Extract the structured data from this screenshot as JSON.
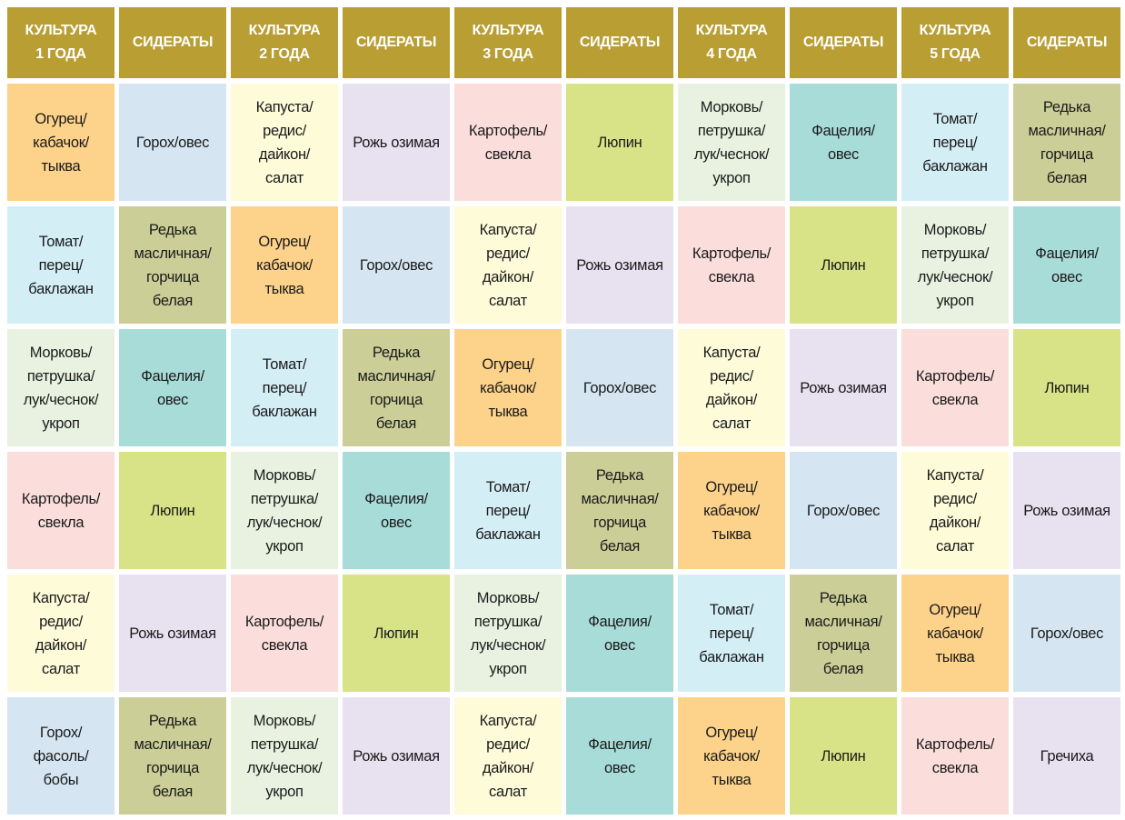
{
  "header": [
    "КУЛЬТУРА\n1 ГОДА",
    "СИДЕРАТЫ",
    "КУЛЬТУРА\n2 ГОДА",
    "СИДЕРАТЫ",
    "КУЛЬТУРА\n3 ГОДА",
    "СИДЕРАТЫ",
    "КУЛЬТУРА\n4 ГОДА",
    "СИДЕРАТЫ",
    "КУЛЬТУРА\n5 ГОДА",
    "СИДЕРАТЫ"
  ],
  "header_color": "#B99E34",
  "crops": {
    "cucumber": {
      "text": "Огурец/\nкабачок/\nтыква",
      "color": "#FDD28A"
    },
    "peas_oats": {
      "text": "Горох/овес",
      "color": "#D5E6F2"
    },
    "cabbage": {
      "text": "Капуста/\nредис/\nдайкон/\nсалат",
      "color": "#FEFBD9"
    },
    "rye": {
      "text": "Рожь озимая",
      "color": "#E8E1F0"
    },
    "potato": {
      "text": "Картофель/\nсвекла",
      "color": "#FBDEDC"
    },
    "lupin": {
      "text": "Люпин",
      "color": "#D7E386"
    },
    "carrot": {
      "text": "Морковь/\nпетрушка/\nлук/чеснок/\nукроп",
      "color": "#E9F2E1"
    },
    "phacelia": {
      "text": "Фацелия/\nовес",
      "color": "#A8DCD8"
    },
    "tomato": {
      "text": "Томат/\nперец/\nбаклажан",
      "color": "#D4EEF6"
    },
    "radish": {
      "text": "Редька\nмасличная/\nгорчица\nбелая",
      "color": "#CBCF97"
    },
    "beans": {
      "text": "Горох/\nфасоль/\nбобы",
      "color": "#D5E6F2"
    },
    "buckwheat": {
      "text": "Гречиха",
      "color": "#E8E1F0"
    }
  },
  "rows": [
    [
      "cucumber",
      "peas_oats",
      "cabbage",
      "rye",
      "potato",
      "lupin",
      "carrot",
      "phacelia",
      "tomato",
      "radish"
    ],
    [
      "tomato",
      "radish",
      "cucumber",
      "peas_oats",
      "cabbage",
      "rye",
      "potato",
      "lupin",
      "carrot",
      "phacelia"
    ],
    [
      "carrot",
      "phacelia",
      "tomato",
      "radish",
      "cucumber",
      "peas_oats",
      "cabbage",
      "rye",
      "potato",
      "lupin"
    ],
    [
      "potato",
      "lupin",
      "carrot",
      "phacelia",
      "tomato",
      "radish",
      "cucumber",
      "peas_oats",
      "cabbage",
      "rye"
    ],
    [
      "cabbage",
      "rye",
      "potato",
      "lupin",
      "carrot",
      "phacelia",
      "tomato",
      "radish",
      "cucumber",
      "peas_oats"
    ],
    [
      "beans",
      "radish",
      "carrot",
      "rye",
      "cabbage",
      "phacelia",
      "cucumber",
      "lupin",
      "potato",
      "buckwheat"
    ]
  ]
}
